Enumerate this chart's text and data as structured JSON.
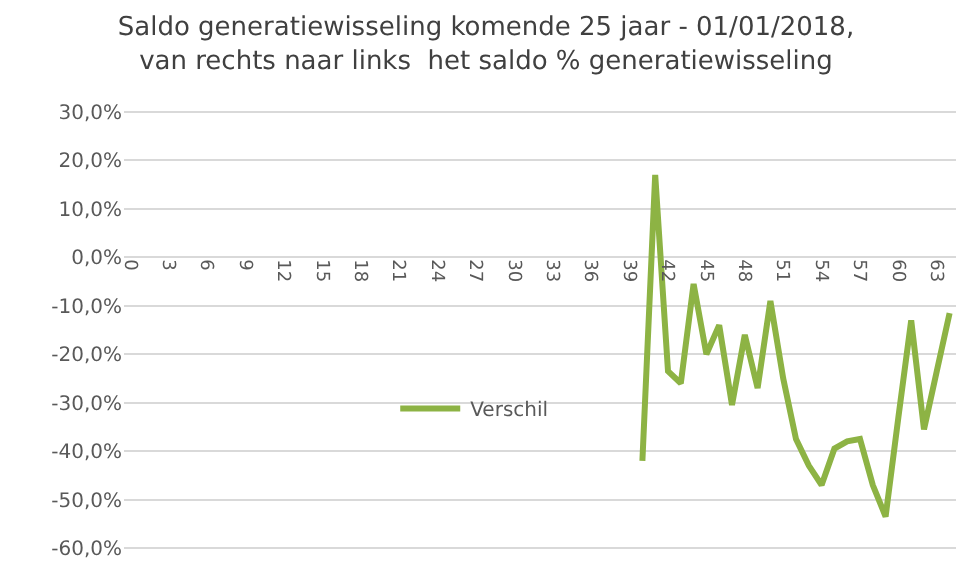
{
  "chart_data": {
    "type": "line",
    "title": "Saldo generatiewisseling komende 25 jaar - 01/01/2018,\nvan rechts naar links  het saldo % generatiewisseling",
    "categories": [
      "0",
      null,
      null,
      "3",
      null,
      null,
      "6",
      null,
      null,
      "9",
      null,
      null,
      "12",
      null,
      null,
      "15",
      null,
      null,
      "18",
      null,
      null,
      "21",
      null,
      null,
      "24",
      null,
      null,
      "27",
      null,
      null,
      "30",
      null,
      null,
      "33",
      null,
      null,
      "36",
      null,
      null,
      "39",
      null,
      null,
      "42",
      null,
      null,
      "45",
      null,
      null,
      "48",
      null,
      null,
      "51",
      null,
      null,
      "54",
      null,
      null,
      "57",
      null,
      null,
      "60",
      null,
      null,
      "63",
      null
    ],
    "series": [
      {
        "name": "Verschil",
        "color": "#8db344",
        "values": [
          null,
          null,
          null,
          null,
          null,
          null,
          null,
          null,
          null,
          null,
          null,
          null,
          null,
          null,
          null,
          null,
          null,
          null,
          null,
          null,
          null,
          null,
          null,
          null,
          null,
          null,
          null,
          null,
          null,
          null,
          null,
          null,
          null,
          null,
          null,
          null,
          null,
          null,
          null,
          null,
          -42,
          17,
          -23.5,
          -26,
          -5.5,
          -20,
          -14,
          -30.5,
          -16,
          -27,
          -9,
          -25,
          -37.5,
          -43,
          -47,
          -39.5,
          -38,
          -37.5,
          -47,
          -53.5,
          -33,
          -13,
          -35.5,
          -23.5,
          -11.5
        ]
      }
    ],
    "ylim": [
      -60,
      30
    ],
    "yticks": [
      {
        "value": -60,
        "label": "-60,0%"
      },
      {
        "value": -50,
        "label": "-50,0%"
      },
      {
        "value": -40,
        "label": "-40,0%"
      },
      {
        "value": -30,
        "label": "-30,0%"
      },
      {
        "value": -20,
        "label": "-20,0%"
      },
      {
        "value": -10,
        "label": "-10,0%"
      },
      {
        "value": 0,
        "label": "0,0%"
      },
      {
        "value": 10,
        "label": "10,0%"
      },
      {
        "value": 20,
        "label": "20,0%"
      },
      {
        "value": 30,
        "label": "30,0%"
      }
    ],
    "grid": "y",
    "legend": "center",
    "marker": "none",
    "line_style": "solid"
  }
}
